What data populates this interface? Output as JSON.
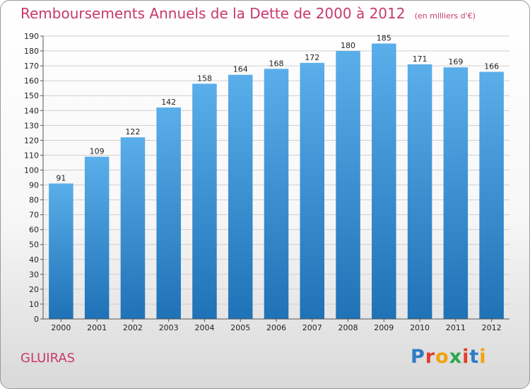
{
  "header": {
    "title": "Remboursements Annuels de la Dette de 2000 à 2012",
    "subtitle": "(en milliers d'€)"
  },
  "footer": {
    "place": "GLUIRAS",
    "logo_letters": [
      "P",
      "r",
      "o",
      "x",
      "i",
      "t",
      "i"
    ],
    "logo_colors": [
      "#2e7bc4",
      "#e23b2c",
      "#f2a20c",
      "#2aa84a",
      "#e23b2c",
      "#2e7bc4",
      "#f2a20c"
    ]
  },
  "colors": {
    "bar_light": "#5aaeea",
    "bar_dark": "#1f72b6",
    "grid": "#cfcfcf",
    "accent": "#c8396e"
  },
  "chart_data": {
    "type": "bar",
    "title": "Remboursements Annuels de la Dette de 2000 à 2012",
    "subtitle": "(en milliers d'€)",
    "categories": [
      "2000",
      "2001",
      "2002",
      "2003",
      "2004",
      "2005",
      "2006",
      "2007",
      "2008",
      "2009",
      "2010",
      "2011",
      "2012"
    ],
    "values": [
      91,
      109,
      122,
      142,
      158,
      164,
      168,
      172,
      180,
      185,
      171,
      169,
      166
    ],
    "ylim": [
      0,
      190
    ],
    "ytick_step": 10,
    "grid": true,
    "xlabel": "",
    "ylabel": ""
  }
}
